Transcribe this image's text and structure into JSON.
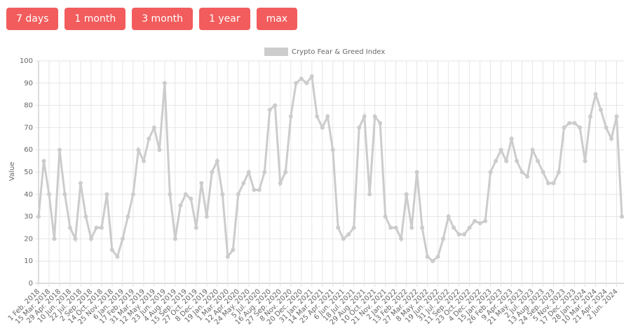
{
  "buttons": [
    "7 days",
    "1 month",
    "3 month",
    "1 year",
    "max"
  ],
  "chart_data": {
    "type": "line",
    "y_label": "Value",
    "categories": [
      "1 Feb. 2018",
      null,
      "15 Mar. 2018",
      null,
      "29 Apr. 2018",
      null,
      "10 Jun. 2018",
      null,
      "22 Jul. 2018",
      null,
      "2 Sep. 2018",
      null,
      "14 Oct. 2018",
      null,
      "25 Nov. 2018",
      null,
      "6 Jan. 2019",
      null,
      "17 Feb. 2019",
      null,
      "31 Mar. 2019",
      null,
      "12 May. 2019",
      null,
      "23 Jun. 2019",
      null,
      "4 Aug. 2019",
      null,
      "15 Sep. 2019",
      null,
      "27 Oct. 2019",
      null,
      "8 Dec. 2019",
      null,
      "19 Jan. 2020",
      null,
      "1 Mar. 2020",
      null,
      "12 Apr. 2020",
      null,
      "24 May. 2020",
      null,
      "5 Jul. 2020",
      null,
      "16 Aug. 2020",
      null,
      "27 Sep. 2020",
      null,
      "8 Nov. 2020",
      null,
      "20 Dec. 2020",
      null,
      "31 Jan. 2021",
      null,
      "14 Mar. 2021",
      null,
      "25 Apr. 2021",
      null,
      "6 Jun. 2021",
      null,
      "18 Jul. 2021",
      null,
      "29 Aug. 2021",
      null,
      "10 Oct. 2021",
      null,
      "21 Nov. 2021",
      null,
      "2 Jan. 2022",
      null,
      "13 Feb. 2022",
      null,
      "27 Mar. 2022",
      null,
      "8 May. 2022",
      null,
      "19 Jun. 2022",
      null,
      "31 Jul. 2022",
      null,
      "11 Sep. 2022",
      null,
      "23 Oct. 2022",
      null,
      "4 Dec. 2022",
      null,
      "15 Jan. 2023",
      null,
      "26 Feb. 2023",
      null,
      "9 Apr. 2023",
      null,
      "21 May. 2023",
      null,
      "2 Jul. 2023",
      null,
      "13 Aug. 2023",
      null,
      "24 Sep. 2023",
      null,
      "5 Nov. 2023",
      null,
      "17 Dec. 2023",
      null,
      "28 Jan. 2024",
      null,
      "10 Mar. 2024",
      null,
      "21 Apr. 2024",
      null,
      "2 Jun. 2024",
      null
    ],
    "series": [
      {
        "name": "Crypto Fear & Greed Index",
        "color": "#cccccc",
        "values": [
          30,
          55,
          40,
          20,
          60,
          40,
          25,
          20,
          45,
          30,
          20,
          25,
          25,
          40,
          15,
          12,
          20,
          30,
          40,
          60,
          55,
          65,
          70,
          60,
          90,
          40,
          20,
          35,
          40,
          38,
          25,
          45,
          30,
          50,
          55,
          40,
          12,
          15,
          40,
          45,
          50,
          42,
          42,
          50,
          78,
          80,
          45,
          50,
          75,
          90,
          92,
          90,
          93,
          75,
          70,
          75,
          60,
          25,
          20,
          22,
          25,
          70,
          75,
          40,
          75,
          72,
          30,
          25,
          25,
          20,
          40,
          25,
          50,
          25,
          12,
          10,
          12,
          20,
          30,
          25,
          22,
          22,
          25,
          28,
          27,
          28,
          50,
          55,
          60,
          55,
          65,
          55,
          50,
          48,
          60,
          55,
          50,
          45,
          45,
          50,
          70,
          72,
          72,
          70,
          55,
          75,
          85,
          78,
          70,
          65,
          75,
          30
        ]
      }
    ],
    "ylim": [
      0,
      100
    ],
    "yticks": [
      0,
      10,
      20,
      30,
      40,
      50,
      60,
      70,
      80,
      90,
      100
    ],
    "grid": true,
    "legend": "top"
  }
}
